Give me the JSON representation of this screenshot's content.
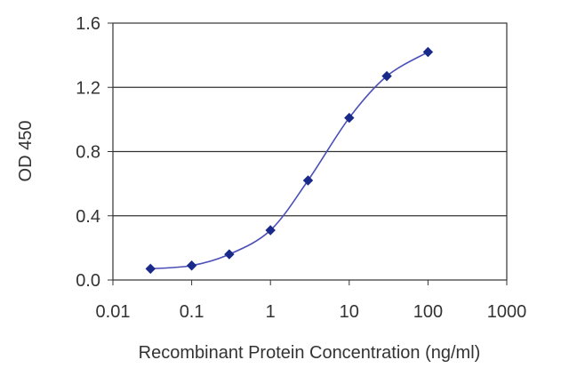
{
  "chart_data": {
    "type": "line",
    "title": "",
    "xlabel": "Recombinant Protein Concentration (ng/ml)",
    "ylabel": "OD 450",
    "x_scale": "log",
    "xlim": [
      0.01,
      1000
    ],
    "ylim": [
      0.0,
      1.6
    ],
    "x_ticks": [
      {
        "value": 0.01,
        "label": "0.01"
      },
      {
        "value": 0.1,
        "label": "0.1"
      },
      {
        "value": 1,
        "label": "1"
      },
      {
        "value": 10,
        "label": "10"
      },
      {
        "value": 100,
        "label": "100"
      },
      {
        "value": 1000,
        "label": "1000"
      }
    ],
    "y_ticks": [
      {
        "value": 0.0,
        "label": "0.0"
      },
      {
        "value": 0.4,
        "label": "0.4"
      },
      {
        "value": 0.8,
        "label": "0.8"
      },
      {
        "value": 1.2,
        "label": "1.2"
      },
      {
        "value": 1.6,
        "label": "1.6"
      }
    ],
    "grid": "horizontal",
    "series": [
      {
        "color": "#1a2a8a",
        "marker": "diamond",
        "smooth": true,
        "points": [
          {
            "x": 0.03,
            "y": 0.07
          },
          {
            "x": 0.1,
            "y": 0.09
          },
          {
            "x": 0.3,
            "y": 0.16
          },
          {
            "x": 1,
            "y": 0.31
          },
          {
            "x": 3,
            "y": 0.62
          },
          {
            "x": 10,
            "y": 1.01
          },
          {
            "x": 30,
            "y": 1.27
          },
          {
            "x": 100,
            "y": 1.42
          }
        ]
      }
    ]
  }
}
